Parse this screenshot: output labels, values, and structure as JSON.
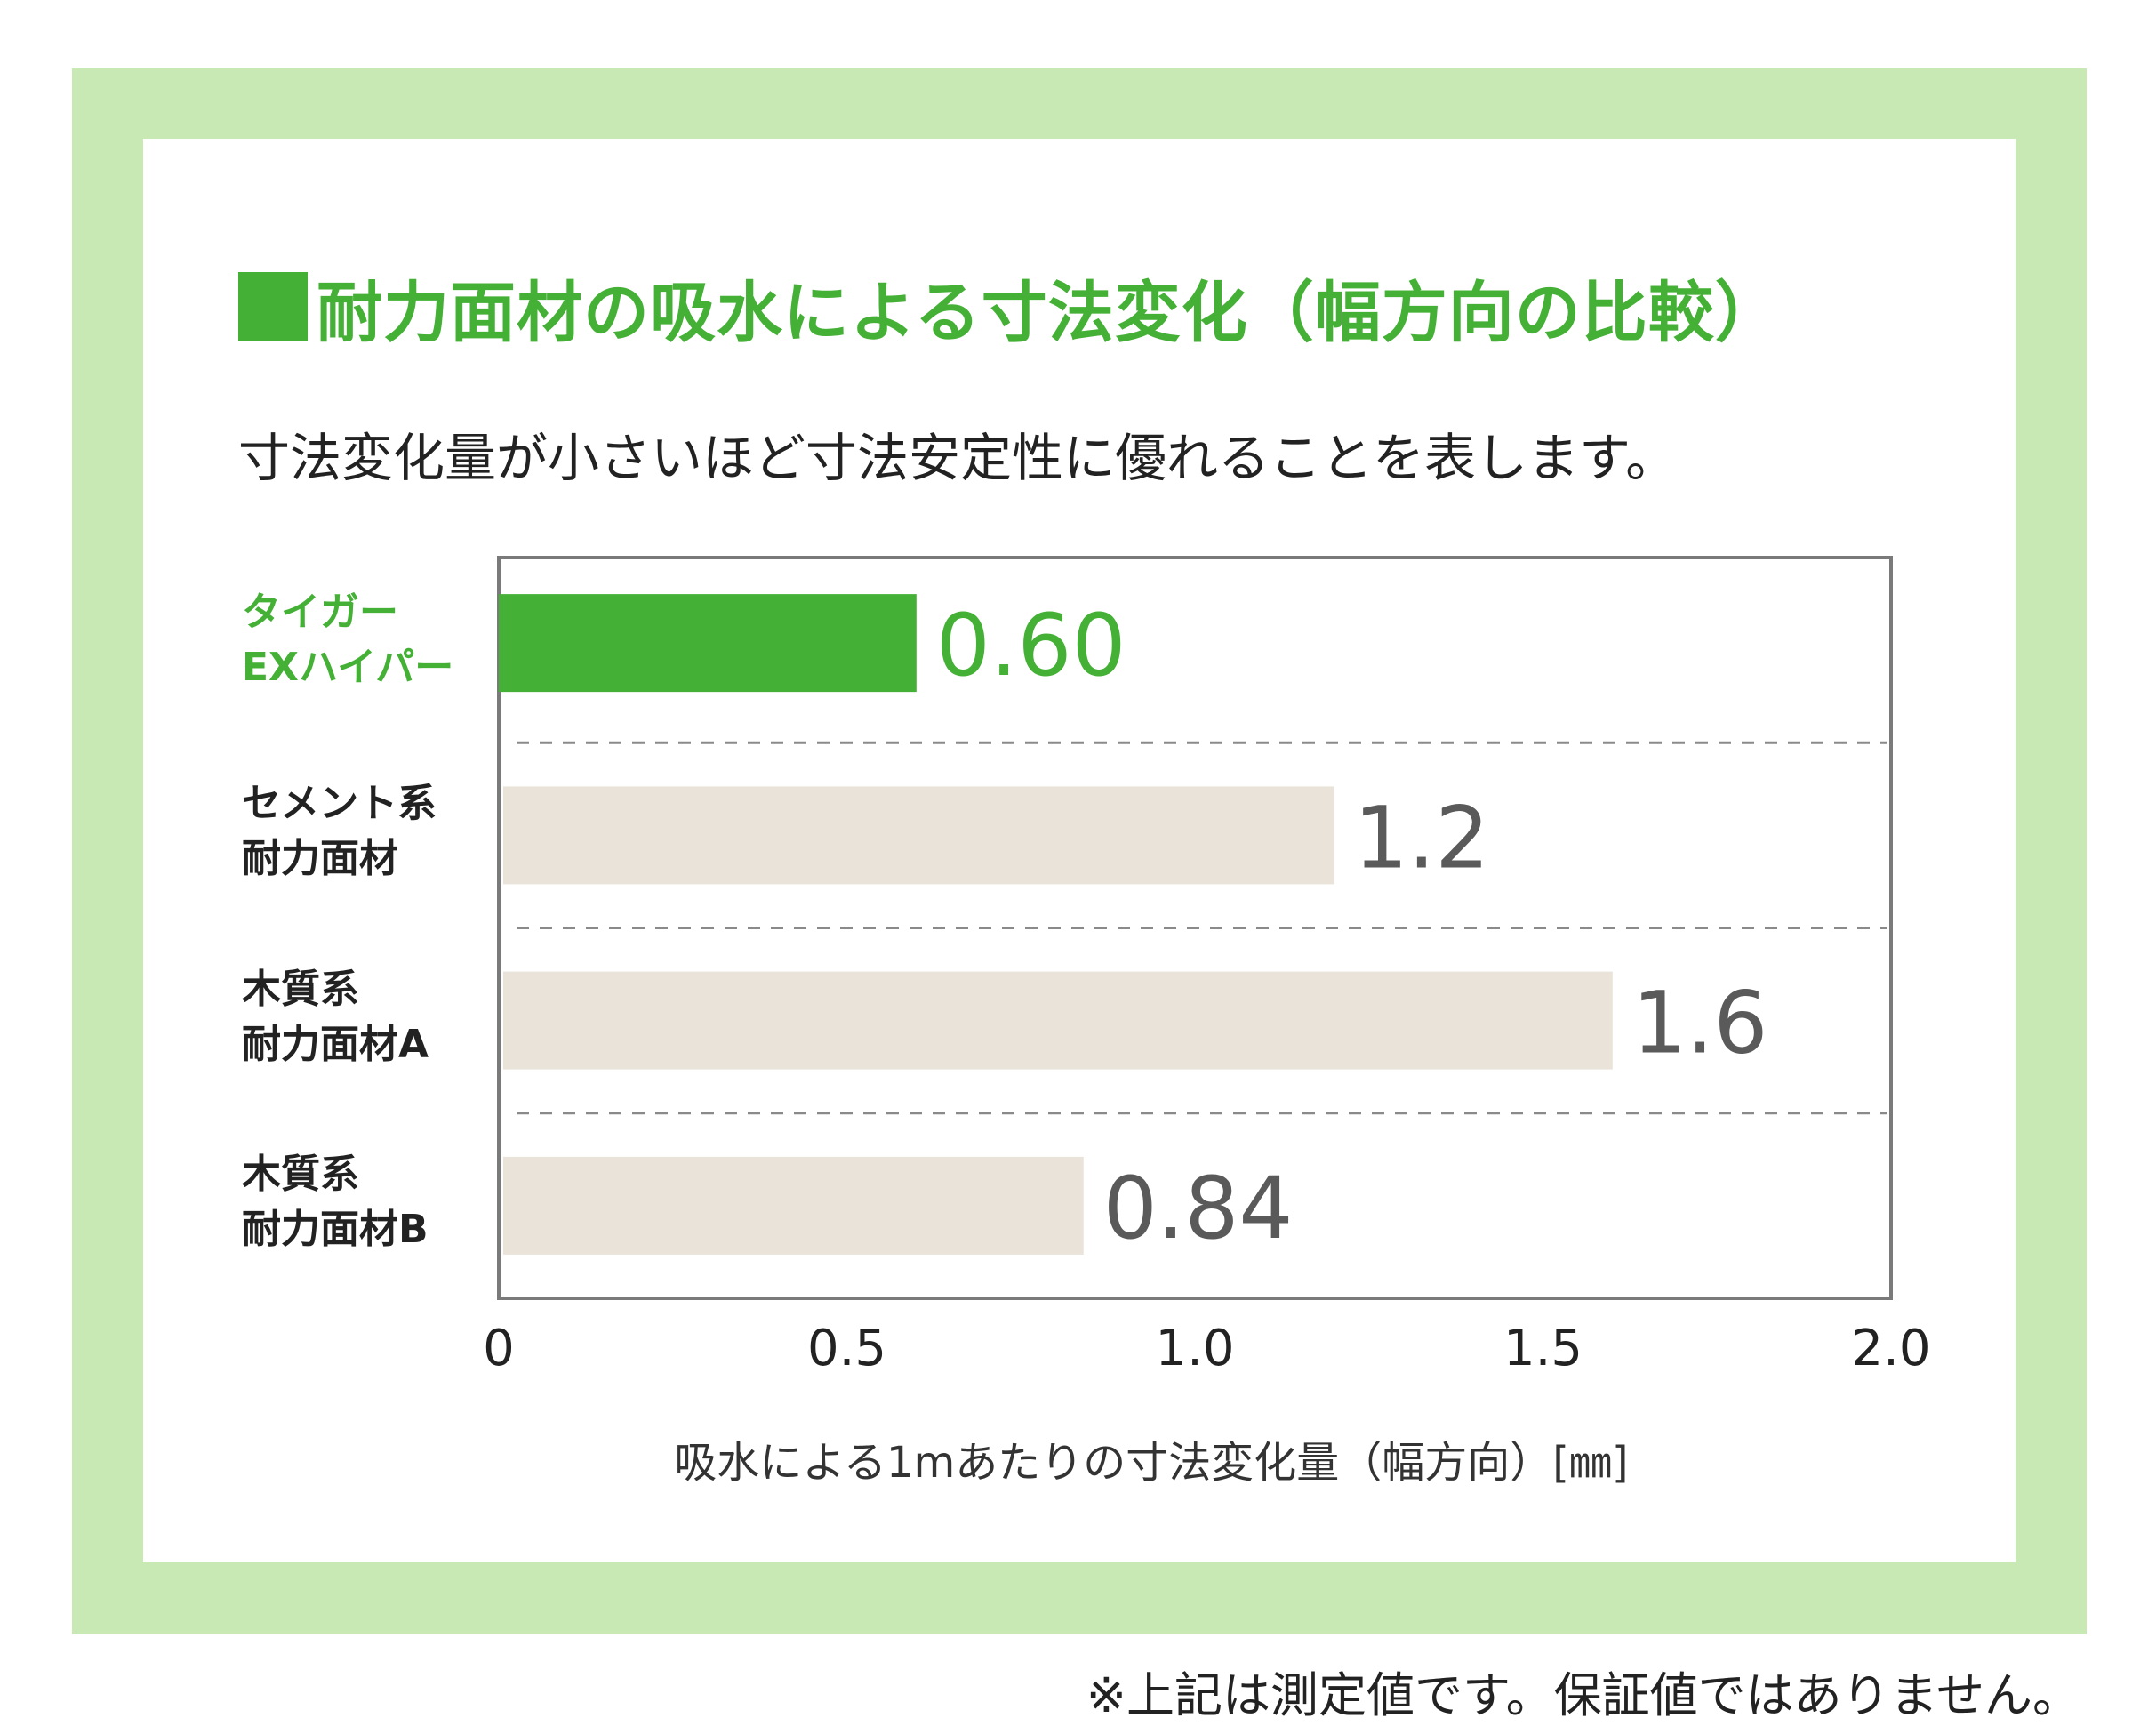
{
  "title": "耐力面材の吸水による寸法変化（幅方向の比較）",
  "subtitle": "寸法変化量が小さいほど寸法安定性に優れることを表します。",
  "footnote": "※上記は測定値です。保証値ではありません。",
  "colors": {
    "frame": "#c8e8b4",
    "highlight": "#44b035",
    "bar_default": "#e9e3d9",
    "value_default": "#5a5a5a"
  },
  "chart_data": {
    "type": "bar",
    "orientation": "horizontal",
    "title": "耐力面材の吸水による寸法変化（幅方向の比較）",
    "xlabel": "吸水による1mあたりの寸法変化量（幅方向）[㎜]",
    "ylabel": "",
    "xlim": [
      0,
      2.0
    ],
    "xticks": [
      "0",
      "0.5",
      "1.0",
      "1.5",
      "2.0"
    ],
    "categories": [
      [
        "タイガー",
        "EXハイパー"
      ],
      [
        "セメント系",
        "耐力面材"
      ],
      [
        "木質系",
        "耐力面材A"
      ],
      [
        "木質系",
        "耐力面材B"
      ]
    ],
    "values": [
      0.6,
      1.2,
      1.6,
      0.84
    ],
    "value_labels": [
      "0.60",
      "1.2",
      "1.6",
      "0.84"
    ],
    "highlight_index": 0,
    "grid": "dashed separators between categories",
    "legend": "none"
  }
}
